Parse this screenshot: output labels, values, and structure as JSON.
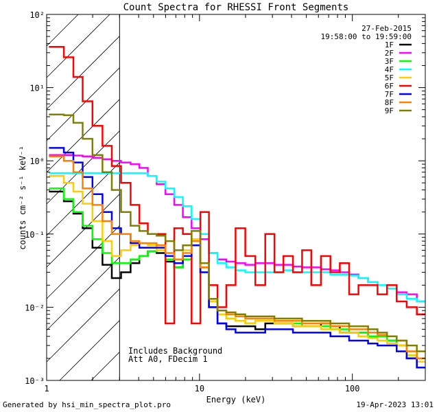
{
  "chart_data": {
    "type": "line",
    "style": "step",
    "title": "Count Spectra for RHESSI Front Segments",
    "xlabel": "Energy (keV)",
    "ylabel": "counts cm⁻² s⁻¹ keV⁻¹",
    "xscale": "log",
    "yscale": "log",
    "xlim": [
      1,
      300
    ],
    "ylim": [
      0.001,
      100
    ],
    "x_tick_labels": [
      "1",
      "10",
      "100"
    ],
    "y_tick_labels": [
      "10⁻³",
      "10⁻²",
      "10⁻¹",
      "10⁰",
      "10¹",
      "10²"
    ],
    "date": "27-Feb-2015",
    "time_range": "19:58:00 to 19:59:00",
    "hatched_region_keV": [
      1,
      3
    ],
    "annotations": [
      "Includes Background",
      "Att A0, FDecim 1"
    ],
    "x": [
      1.2,
      1.4,
      1.6,
      1.85,
      2.15,
      2.5,
      2.85,
      3.3,
      3.8,
      4.3,
      4.9,
      5.6,
      6.4,
      7.3,
      8.3,
      9.5,
      10.8,
      12.3,
      14,
      16,
      18.5,
      21.5,
      25,
      29,
      33,
      38,
      44,
      50,
      58,
      67,
      77,
      89,
      102,
      118,
      136,
      157,
      181,
      210,
      245,
      285
    ],
    "series": [
      {
        "name": "1F",
        "color": "#000000",
        "values": [
          0.38,
          0.28,
          0.19,
          0.12,
          0.065,
          0.038,
          0.025,
          0.03,
          0.04,
          0.05,
          0.058,
          0.055,
          0.042,
          0.035,
          0.045,
          0.07,
          0.035,
          0.01,
          0.006,
          0.0055,
          0.0055,
          0.0055,
          0.005,
          0.006,
          0.006,
          0.006,
          0.0055,
          0.0055,
          0.0055,
          0.006,
          0.0055,
          0.0045,
          0.0045,
          0.0045,
          0.004,
          0.004,
          0.0035,
          0.003,
          0.002,
          0.0015
        ]
      },
      {
        "name": "2F",
        "color": "#ff00ff",
        "values": [
          1.2,
          1.2,
          1.18,
          1.15,
          1.1,
          1.05,
          1.0,
          0.95,
          0.9,
          0.8,
          0.62,
          0.48,
          0.35,
          0.25,
          0.17,
          0.12,
          0.085,
          0.055,
          0.045,
          0.042,
          0.04,
          0.038,
          0.04,
          0.04,
          0.038,
          0.038,
          0.036,
          0.035,
          0.035,
          0.033,
          0.032,
          0.03,
          0.028,
          0.025,
          0.022,
          0.02,
          0.018,
          0.016,
          0.015,
          0.012
        ]
      },
      {
        "name": "3F",
        "color": "#00ff00",
        "values": [
          0.42,
          0.3,
          0.2,
          0.13,
          0.085,
          0.055,
          0.04,
          0.04,
          0.045,
          0.05,
          0.058,
          0.06,
          0.045,
          0.035,
          0.045,
          0.07,
          0.03,
          0.012,
          0.008,
          0.007,
          0.0065,
          0.006,
          0.0065,
          0.0065,
          0.006,
          0.006,
          0.006,
          0.0055,
          0.0055,
          0.0055,
          0.005,
          0.005,
          0.0045,
          0.0045,
          0.004,
          0.004,
          0.0035,
          0.003,
          0.0022,
          0.0018
        ]
      },
      {
        "name": "4F",
        "color": "#00ffff",
        "values": [
          0.68,
          0.68,
          0.68,
          0.68,
          0.68,
          0.68,
          0.68,
          0.68,
          0.68,
          0.68,
          0.62,
          0.52,
          0.42,
          0.32,
          0.24,
          0.16,
          0.1,
          0.055,
          0.04,
          0.035,
          0.032,
          0.03,
          0.03,
          0.03,
          0.03,
          0.032,
          0.03,
          0.03,
          0.03,
          0.03,
          0.028,
          0.028,
          0.027,
          0.025,
          0.022,
          0.02,
          0.018,
          0.015,
          0.013,
          0.012
        ]
      },
      {
        "name": "5F",
        "color": "#ffcc00",
        "values": [
          0.62,
          0.5,
          0.38,
          0.26,
          0.15,
          0.08,
          0.05,
          0.06,
          0.07,
          0.075,
          0.07,
          0.06,
          0.05,
          0.045,
          0.06,
          0.085,
          0.035,
          0.012,
          0.008,
          0.007,
          0.0065,
          0.006,
          0.0065,
          0.0065,
          0.006,
          0.006,
          0.0055,
          0.0055,
          0.0055,
          0.005,
          0.005,
          0.0045,
          0.0045,
          0.004,
          0.0038,
          0.0035,
          0.0032,
          0.003,
          0.0022,
          0.0018
        ]
      },
      {
        "name": "6F",
        "color": "#ff0000",
        "values": [
          36,
          26,
          14,
          6.5,
          3,
          1.6,
          0.85,
          0.5,
          0.25,
          0.14,
          0.1,
          0.1,
          0.006,
          0.12,
          0.1,
          0.006,
          0.2,
          0.02,
          0.01,
          0.02,
          0.12,
          0.05,
          0.02,
          0.1,
          0.03,
          0.05,
          0.03,
          0.06,
          0.02,
          0.05,
          0.03,
          0.04,
          0.015,
          0.02,
          0.02,
          0.015,
          0.02,
          0.012,
          0.01,
          0.008
        ]
      },
      {
        "name": "7F",
        "color": "#0000ff",
        "values": [
          1.5,
          1.3,
          0.95,
          0.6,
          0.35,
          0.2,
          0.12,
          0.1,
          0.075,
          0.065,
          0.065,
          0.065,
          0.05,
          0.04,
          0.05,
          0.07,
          0.03,
          0.01,
          0.006,
          0.005,
          0.0045,
          0.0045,
          0.0045,
          0.005,
          0.005,
          0.005,
          0.0045,
          0.0045,
          0.0045,
          0.0045,
          0.004,
          0.004,
          0.0035,
          0.0035,
          0.0032,
          0.003,
          0.003,
          0.0025,
          0.002,
          0.0015
        ]
      },
      {
        "name": "8F",
        "color": "#ff8000",
        "values": [
          1.15,
          1.0,
          0.7,
          0.42,
          0.25,
          0.15,
          0.1,
          0.1,
          0.08,
          0.075,
          0.075,
          0.07,
          0.055,
          0.045,
          0.055,
          0.08,
          0.035,
          0.013,
          0.009,
          0.008,
          0.0075,
          0.007,
          0.007,
          0.007,
          0.0065,
          0.0065,
          0.0065,
          0.006,
          0.006,
          0.006,
          0.0055,
          0.0055,
          0.005,
          0.005,
          0.0045,
          0.0042,
          0.004,
          0.0035,
          0.0025,
          0.002
        ]
      },
      {
        "name": "9F",
        "color": "#808000",
        "values": [
          4.3,
          4.2,
          3.3,
          2.0,
          1.2,
          0.7,
          0.4,
          0.2,
          0.13,
          0.11,
          0.1,
          0.095,
          0.08,
          0.06,
          0.07,
          0.11,
          0.04,
          0.013,
          0.009,
          0.0085,
          0.008,
          0.0075,
          0.0075,
          0.0075,
          0.007,
          0.007,
          0.007,
          0.0065,
          0.0065,
          0.0065,
          0.006,
          0.006,
          0.0055,
          0.0055,
          0.005,
          0.0045,
          0.004,
          0.0035,
          0.003,
          0.0025
        ]
      }
    ]
  },
  "footer": {
    "generated_by": "Generated by hsi_min_spectra_plot.pro",
    "print_date": "19-Apr-2023 13:01"
  }
}
